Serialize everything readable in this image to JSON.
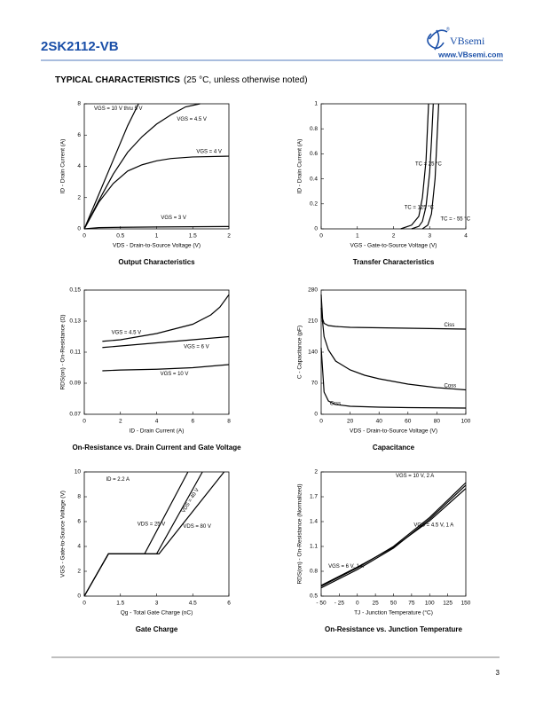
{
  "header": {
    "part_number": "2SK2112-VB",
    "brand": "VBsemi",
    "registered": "®",
    "website": "www.VBsemi.com"
  },
  "heading": {
    "title": "TYPICAL CHARACTERISTICS",
    "note": "(25 °C, unless otherwise noted)"
  },
  "chart_data": [
    {
      "type": "line",
      "title": "Output Characteristics",
      "xlabel": "VDS - Drain-to-Source Voltage (V)",
      "ylabel": "ID - Drain Current (A)",
      "xlim": [
        0,
        2
      ],
      "ylim": [
        0,
        8
      ],
      "xticks": [
        0,
        0.5,
        1,
        1.5,
        2
      ],
      "yticks": [
        0,
        2,
        4,
        6,
        8
      ],
      "series": [
        {
          "name": "VGS = 10 V thru 5 V",
          "color": "#000000",
          "x": [
            0,
            0.2,
            0.4,
            0.6,
            0.75
          ],
          "values": [
            0,
            2.2,
            4.4,
            6.6,
            8
          ]
        },
        {
          "name": "VGS = 4.5 V",
          "color": "#000000",
          "x": [
            0,
            0.2,
            0.4,
            0.6,
            0.8,
            1,
            1.2,
            1.4,
            1.6
          ],
          "values": [
            0,
            1.8,
            3.5,
            4.9,
            5.9,
            6.7,
            7.3,
            7.8,
            8
          ]
        },
        {
          "name": "VGS = 4 V",
          "color": "#000000",
          "x": [
            0,
            0.2,
            0.4,
            0.6,
            0.8,
            1,
            1.2,
            1.5,
            2
          ],
          "values": [
            0,
            1.7,
            2.9,
            3.7,
            4.1,
            4.35,
            4.5,
            4.6,
            4.65
          ]
        },
        {
          "name": "VGS = 3 V",
          "color": "#000000",
          "x": [
            0,
            0.2,
            0.5,
            1,
            2
          ],
          "values": [
            0,
            0.08,
            0.1,
            0.12,
            0.15
          ]
        }
      ]
    },
    {
      "type": "line",
      "title": "Transfer Characteristics",
      "xlabel": "VGS - Gate-to-Source Voltage (V)",
      "ylabel": "ID - Drain Current (A)",
      "xlim": [
        0,
        4
      ],
      "ylim": [
        0,
        1
      ],
      "xticks": [
        0,
        1,
        2,
        3,
        4
      ],
      "yticks": [
        0,
        0.2,
        0.4,
        0.6,
        0.8,
        1
      ],
      "series": [
        {
          "name": "TC = 25 °C",
          "color": "#000000",
          "x": [
            2.5,
            2.7,
            2.8,
            2.9,
            3.0,
            3.05,
            3.1
          ],
          "values": [
            0,
            0.02,
            0.06,
            0.18,
            0.45,
            0.7,
            1
          ]
        },
        {
          "name": "TC = 125 °C",
          "color": "#000000",
          "x": [
            2.2,
            2.5,
            2.7,
            2.8,
            2.9,
            2.97
          ],
          "values": [
            0,
            0.03,
            0.1,
            0.25,
            0.55,
            1
          ]
        },
        {
          "name": "TC = - 55 °C",
          "color": "#000000",
          "x": [
            2.8,
            2.95,
            3.05,
            3.15,
            3.2,
            3.25
          ],
          "values": [
            0,
            0.03,
            0.12,
            0.4,
            0.7,
            1
          ]
        }
      ]
    },
    {
      "type": "line",
      "title": "On-Resistance vs. Drain Current and Gate Voltage",
      "xlabel": "ID - Drain Current (A)",
      "ylabel": "RDS(on) - On-Resistance (Ω)",
      "xlim": [
        0,
        8
      ],
      "ylim": [
        0.07,
        0.15
      ],
      "xticks": [
        0,
        2,
        4,
        6,
        8
      ],
      "yticks": [
        0.07,
        0.09,
        0.11,
        0.13,
        0.15
      ],
      "series": [
        {
          "name": "VGS = 4.5 V",
          "color": "#000000",
          "x": [
            1,
            2,
            3,
            4,
            5,
            6,
            7,
            7.5,
            8
          ],
          "values": [
            0.117,
            0.118,
            0.12,
            0.122,
            0.125,
            0.128,
            0.134,
            0.139,
            0.147
          ]
        },
        {
          "name": "VGS = 6 V",
          "color": "#000000",
          "x": [
            1,
            2,
            4,
            6,
            8
          ],
          "values": [
            0.113,
            0.114,
            0.116,
            0.118,
            0.12
          ]
        },
        {
          "name": "VGS = 10 V",
          "color": "#000000",
          "x": [
            1,
            2,
            4,
            6,
            8
          ],
          "values": [
            0.098,
            0.0985,
            0.099,
            0.1,
            0.102
          ]
        }
      ]
    },
    {
      "type": "line",
      "title": "Capacitance",
      "xlabel": "VDS - Drain-to-Source Voltage (V)",
      "ylabel": "C - Capacitance (pF)",
      "xlim": [
        0,
        100
      ],
      "ylim": [
        0,
        280
      ],
      "xticks": [
        0,
        20,
        40,
        60,
        80,
        100
      ],
      "yticks": [
        0,
        70,
        140,
        210,
        280
      ],
      "series": [
        {
          "name": "Ciss",
          "color": "#000000",
          "x": [
            0,
            1,
            2,
            5,
            10,
            20,
            40,
            60,
            80,
            100
          ],
          "values": [
            270,
            215,
            205,
            200,
            198,
            196,
            195,
            194,
            193,
            192
          ]
        },
        {
          "name": "Coss",
          "color": "#000000",
          "x": [
            0,
            2,
            5,
            10,
            20,
            30,
            40,
            60,
            80,
            100
          ],
          "values": [
            240,
            175,
            145,
            120,
            100,
            88,
            80,
            68,
            60,
            55
          ]
        },
        {
          "name": "Crss",
          "color": "#000000",
          "x": [
            0,
            2,
            5,
            10,
            20,
            40,
            60,
            100
          ],
          "values": [
            150,
            50,
            30,
            22,
            18,
            16,
            15,
            14
          ]
        }
      ]
    },
    {
      "type": "line",
      "title": "Gate Charge",
      "xlabel": "Qg - Total Gate Charge (nC)",
      "ylabel": "VGS - Gate-to-Source Voltage (V)",
      "xlim": [
        0,
        6
      ],
      "ylim": [
        0,
        10
      ],
      "xticks": [
        0,
        1.5,
        3,
        4.5,
        6
      ],
      "yticks": [
        0,
        2,
        4,
        6,
        8,
        10
      ],
      "annotations": [
        "ID = 2.2 A"
      ],
      "series": [
        {
          "name": "VDS = 25 V",
          "color": "#000000",
          "x": [
            0,
            1,
            2.5,
            4.3
          ],
          "values": [
            0,
            3.4,
            3.4,
            10
          ]
        },
        {
          "name": "VDS = 40 V",
          "color": "#000000",
          "x": [
            0,
            1,
            3,
            4.9
          ],
          "values": [
            0,
            3.4,
            3.4,
            10
          ]
        },
        {
          "name": "VDS = 80 V",
          "color": "#000000",
          "x": [
            0,
            1,
            3.1,
            5.8
          ],
          "values": [
            0,
            3.4,
            3.4,
            10
          ]
        }
      ]
    },
    {
      "type": "line",
      "title": "On-Resistance vs. Junction Temperature",
      "xlabel": "TJ - Junction Temperature (°C)",
      "ylabel": "RDS(on) - On-Resistance (Normalized)",
      "xlim": [
        -50,
        150
      ],
      "ylim": [
        0.5,
        2
      ],
      "xticks": [
        {
          "value": -50,
          "label": "- 50"
        },
        {
          "value": -25,
          "label": "- 25"
        },
        0,
        25,
        50,
        75,
        100,
        125,
        150
      ],
      "yticks": [
        0.5,
        0.8,
        1.1,
        1.4,
        1.7,
        2
      ],
      "series": [
        {
          "name": "VGS = 10 V, 2 A",
          "color": "#000000",
          "x": [
            -50,
            0,
            25,
            50,
            100,
            150
          ],
          "values": [
            0.62,
            0.84,
            0.97,
            1.1,
            1.45,
            1.87
          ]
        },
        {
          "name": "VGS = 4.5 V, 1 A",
          "color": "#000000",
          "x": [
            -50,
            0,
            25,
            50,
            100,
            150
          ],
          "values": [
            0.63,
            0.85,
            0.97,
            1.09,
            1.41,
            1.8
          ]
        },
        {
          "name": "VGS = 6 V, 1 A",
          "color": "#000000",
          "x": [
            -50,
            0,
            25,
            50,
            100,
            150
          ],
          "values": [
            0.6,
            0.82,
            0.95,
            1.08,
            1.43,
            1.84
          ]
        }
      ]
    }
  ],
  "footer": {
    "page": "3"
  }
}
